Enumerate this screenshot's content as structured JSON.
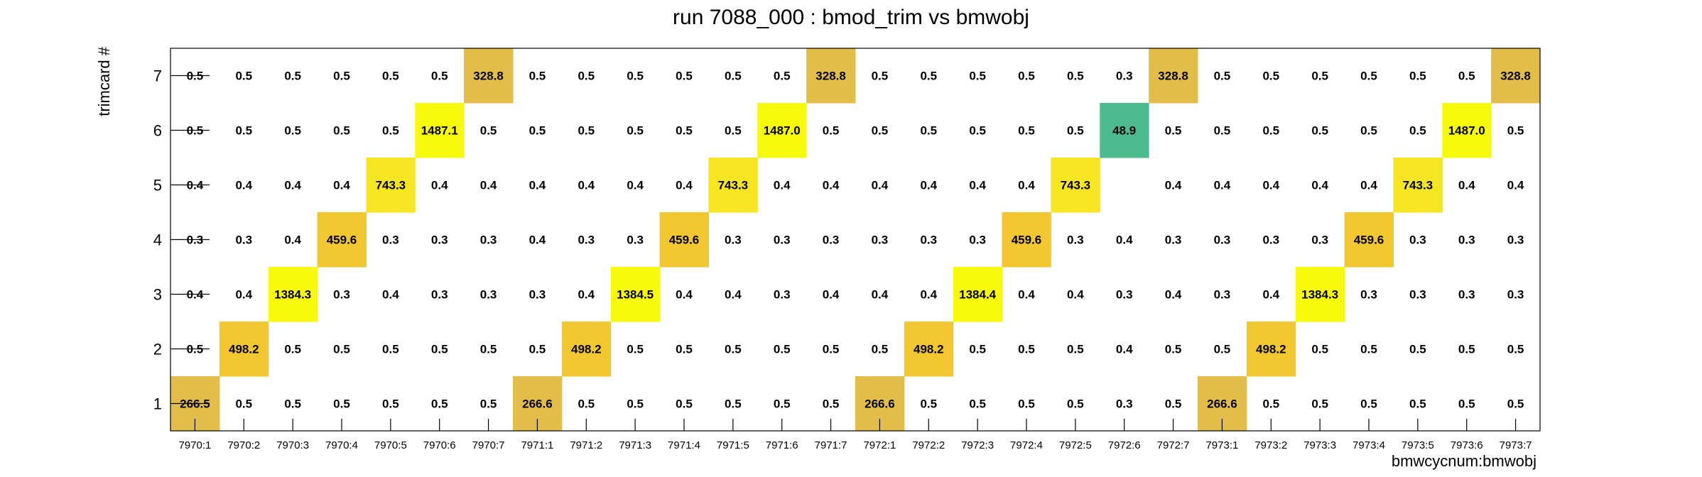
{
  "chart_data": {
    "type": "heatmap",
    "title": "run 7088_000 : bmod_trim vs bmwobj",
    "xlabel": "bmwcycnum:bmwobj",
    "ylabel": "trimcard #",
    "x_categories": [
      "7970:1",
      "7970:2",
      "7970:3",
      "7970:4",
      "7970:5",
      "7970:6",
      "7970:7",
      "7971:1",
      "7971:2",
      "7971:3",
      "7971:4",
      "7971:5",
      "7971:6",
      "7971:7",
      "7972:1",
      "7972:2",
      "7972:3",
      "7972:4",
      "7972:5",
      "7972:6",
      "7972:7",
      "7973:1",
      "7973:2",
      "7973:3",
      "7973:4",
      "7973:5",
      "7973:6",
      "7973:7"
    ],
    "y_categories": [
      "1",
      "2",
      "3",
      "4",
      "5",
      "6",
      "7"
    ],
    "values": [
      [
        "266.5",
        "0.5",
        "0.5",
        "0.5",
        "0.5",
        "0.5",
        "0.5",
        "266.6",
        "0.5",
        "0.5",
        "0.5",
        "0.5",
        "0.5",
        "0.5",
        "266.6",
        "0.5",
        "0.5",
        "0.5",
        "0.5",
        "0.3",
        "0.5",
        "266.6",
        "0.5",
        "0.5",
        "0.5",
        "0.5",
        "0.5",
        "0.5"
      ],
      [
        "0.5",
        "498.2",
        "0.5",
        "0.5",
        "0.5",
        "0.5",
        "0.5",
        "0.5",
        "498.2",
        "0.5",
        "0.5",
        "0.5",
        "0.5",
        "0.5",
        "0.5",
        "498.2",
        "0.5",
        "0.5",
        "0.5",
        "0.4",
        "0.5",
        "0.5",
        "498.2",
        "0.5",
        "0.5",
        "0.5",
        "0.5",
        "0.5"
      ],
      [
        "0.4",
        "0.4",
        "1384.3",
        "0.3",
        "0.4",
        "0.3",
        "0.3",
        "0.3",
        "0.4",
        "1384.5",
        "0.4",
        "0.4",
        "0.3",
        "0.4",
        "0.4",
        "0.4",
        "1384.4",
        "0.4",
        "0.4",
        "0.3",
        "0.4",
        "0.3",
        "0.4",
        "1384.3",
        "0.3",
        "0.3",
        "0.3",
        "0.3"
      ],
      [
        "0.3",
        "0.3",
        "0.4",
        "459.6",
        "0.3",
        "0.3",
        "0.3",
        "0.4",
        "0.3",
        "0.3",
        "459.6",
        "0.3",
        "0.3",
        "0.3",
        "0.3",
        "0.3",
        "0.3",
        "459.6",
        "0.3",
        "0.4",
        "0.3",
        "0.3",
        "0.3",
        "0.3",
        "459.6",
        "0.3",
        "0.3",
        "0.3"
      ],
      [
        "0.4",
        "0.4",
        "0.4",
        "0.4",
        "743.3",
        "0.4",
        "0.4",
        "0.4",
        "0.4",
        "0.4",
        "0.4",
        "743.3",
        "0.4",
        "0.4",
        "0.4",
        "0.4",
        "0.4",
        "0.4",
        "743.3",
        null,
        "0.4",
        "0.4",
        "0.4",
        "0.4",
        "0.4",
        "743.3",
        "0.4",
        "0.4"
      ],
      [
        "0.5",
        "0.5",
        "0.5",
        "0.5",
        "0.5",
        "1487.1",
        "0.5",
        "0.5",
        "0.5",
        "0.5",
        "0.5",
        "0.5",
        "1487.0",
        "0.5",
        "0.5",
        "0.5",
        "0.5",
        "0.5",
        "0.5",
        "48.9",
        "0.5",
        "0.5",
        "0.5",
        "0.5",
        "0.5",
        "0.5",
        "1487.0",
        "0.5"
      ],
      [
        "0.5",
        "0.5",
        "0.5",
        "0.5",
        "0.5",
        "0.5",
        "328.8",
        "0.5",
        "0.5",
        "0.5",
        "0.5",
        "0.5",
        "0.5",
        "328.8",
        "0.5",
        "0.5",
        "0.5",
        "0.5",
        "0.5",
        "0.3",
        "328.8",
        "0.5",
        "0.5",
        "0.5",
        "0.5",
        "0.5",
        "0.5",
        "328.8"
      ]
    ],
    "colors": {
      "frame": "#000000",
      "palette": [
        {
          "min": 1000,
          "color": "#f8fa0d"
        },
        {
          "min": 700,
          "color": "#f5e522"
        },
        {
          "min": 400,
          "color": "#f3c72f"
        },
        {
          "min": 250,
          "color": "#e2bd49"
        },
        {
          "min": 10,
          "color": "#4dbb8d"
        }
      ]
    },
    "grid": false,
    "legend": "none"
  }
}
